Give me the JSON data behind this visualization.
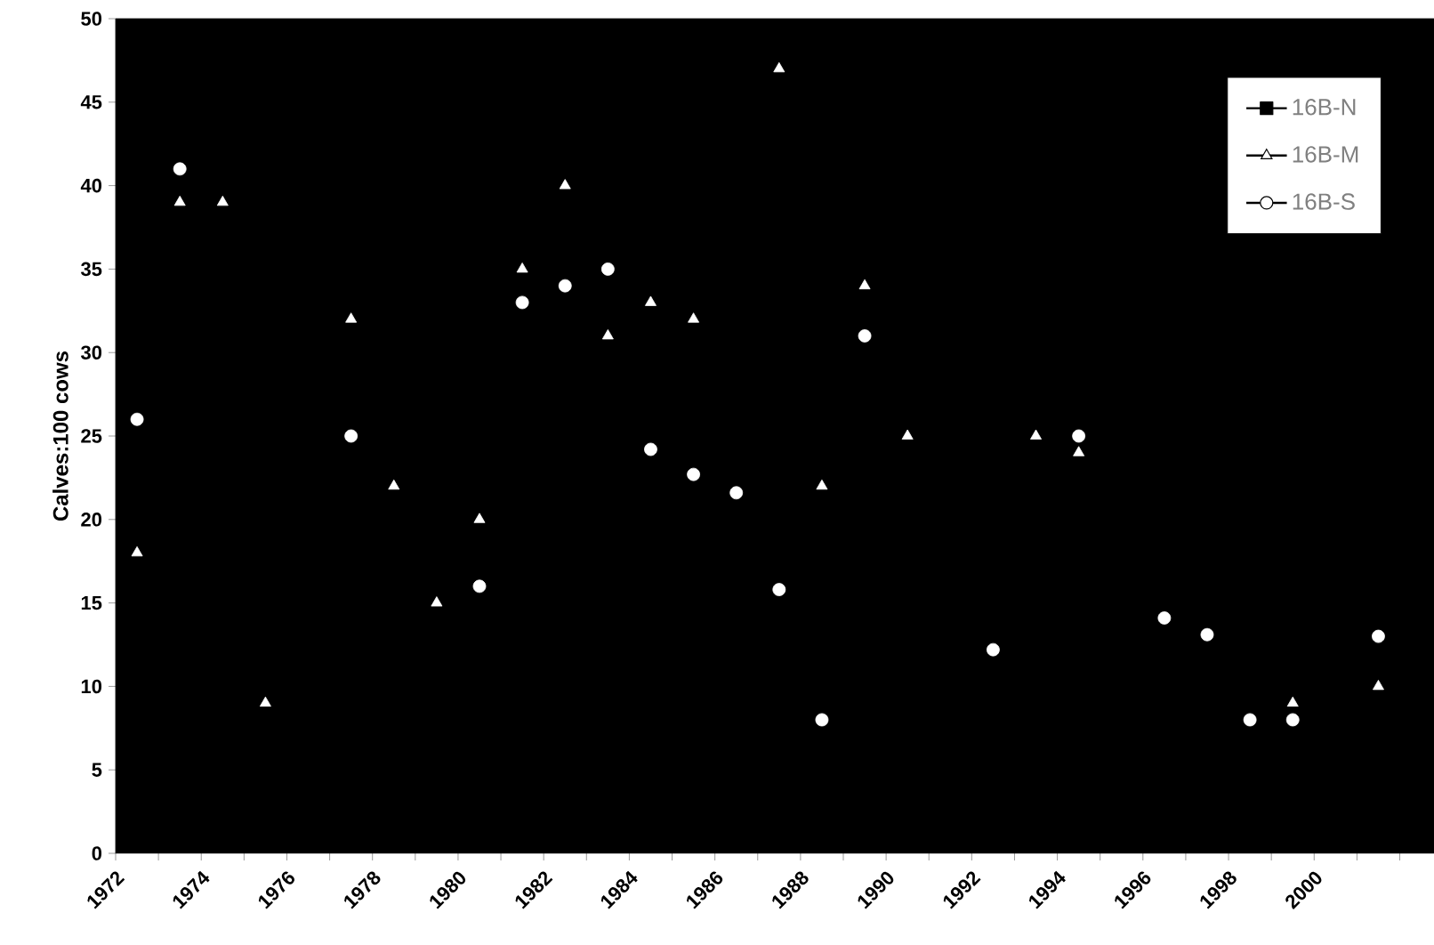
{
  "chart_data": {
    "type": "scatter",
    "ylabel": "Calves:100 cows",
    "xlim": [
      1972,
      2002.8
    ],
    "ylim": [
      0,
      50
    ],
    "xticks": [
      1972,
      {
        "value": 1973,
        "label": null
      },
      1974,
      {
        "value": 1975,
        "label": null
      },
      1976,
      {
        "value": 1977,
        "label": null
      },
      1978,
      {
        "value": 1979,
        "label": null
      },
      1980,
      {
        "value": 1981,
        "label": null
      },
      1982,
      {
        "value": 1983,
        "label": null
      },
      1984,
      {
        "value": 1985,
        "label": null
      },
      1986,
      {
        "value": 1987,
        "label": null
      },
      1988,
      {
        "value": 1989,
        "label": null
      },
      1990,
      {
        "value": 1991,
        "label": null
      },
      1992,
      {
        "value": 1993,
        "label": null
      },
      1994,
      {
        "value": 1995,
        "label": null
      },
      1996,
      {
        "value": 1997,
        "label": null
      },
      1998,
      {
        "value": 1999,
        "label": null
      },
      2000,
      {
        "value": 2001,
        "label": null
      },
      {
        "value": 2002,
        "label": null
      }
    ],
    "yticks": [
      0,
      5,
      10,
      15,
      20,
      25,
      30,
      35,
      40,
      45,
      50
    ],
    "grid": false,
    "legend": "top right",
    "series": [
      {
        "name": "16B-N",
        "type": "line",
        "color": "#000000",
        "marker": "square",
        "line_style": "solid"
      },
      {
        "name": "16B-M",
        "color": "#ffffff",
        "marker": "triangle",
        "x": [
          1972.5,
          1973.5,
          1974.5,
          1975.5,
          1977.5,
          1978.5,
          1979.5,
          1980.5,
          1981.5,
          1982.5,
          1983.5,
          1984.5,
          1985.5,
          1987.5,
          1988.5,
          1989.5,
          1990.5,
          1993.5,
          1994.5,
          1999.5,
          2001.5
        ],
        "values": [
          18,
          39,
          39,
          9,
          32,
          22,
          15,
          20,
          35,
          40,
          31,
          33,
          32,
          47,
          22,
          34,
          25,
          25,
          24,
          9,
          10
        ]
      },
      {
        "name": "16B-S",
        "color": "#ffffff",
        "marker": "circle",
        "x": [
          1972.5,
          1973.5,
          1977.5,
          1980.5,
          1981.5,
          1982.5,
          1983.5,
          1984.5,
          1985.5,
          1986.5,
          1987.5,
          1988.5,
          1989.5,
          1992.5,
          1994.5,
          1996.5,
          1997.5,
          1998.5,
          1999.5,
          2001.5
        ],
        "values": [
          26,
          41,
          25,
          16,
          33,
          34,
          35,
          24.2,
          22.7,
          21.6,
          15.8,
          8,
          31,
          12.2,
          25,
          14.1,
          13.1,
          8,
          8,
          13
        ]
      }
    ]
  }
}
